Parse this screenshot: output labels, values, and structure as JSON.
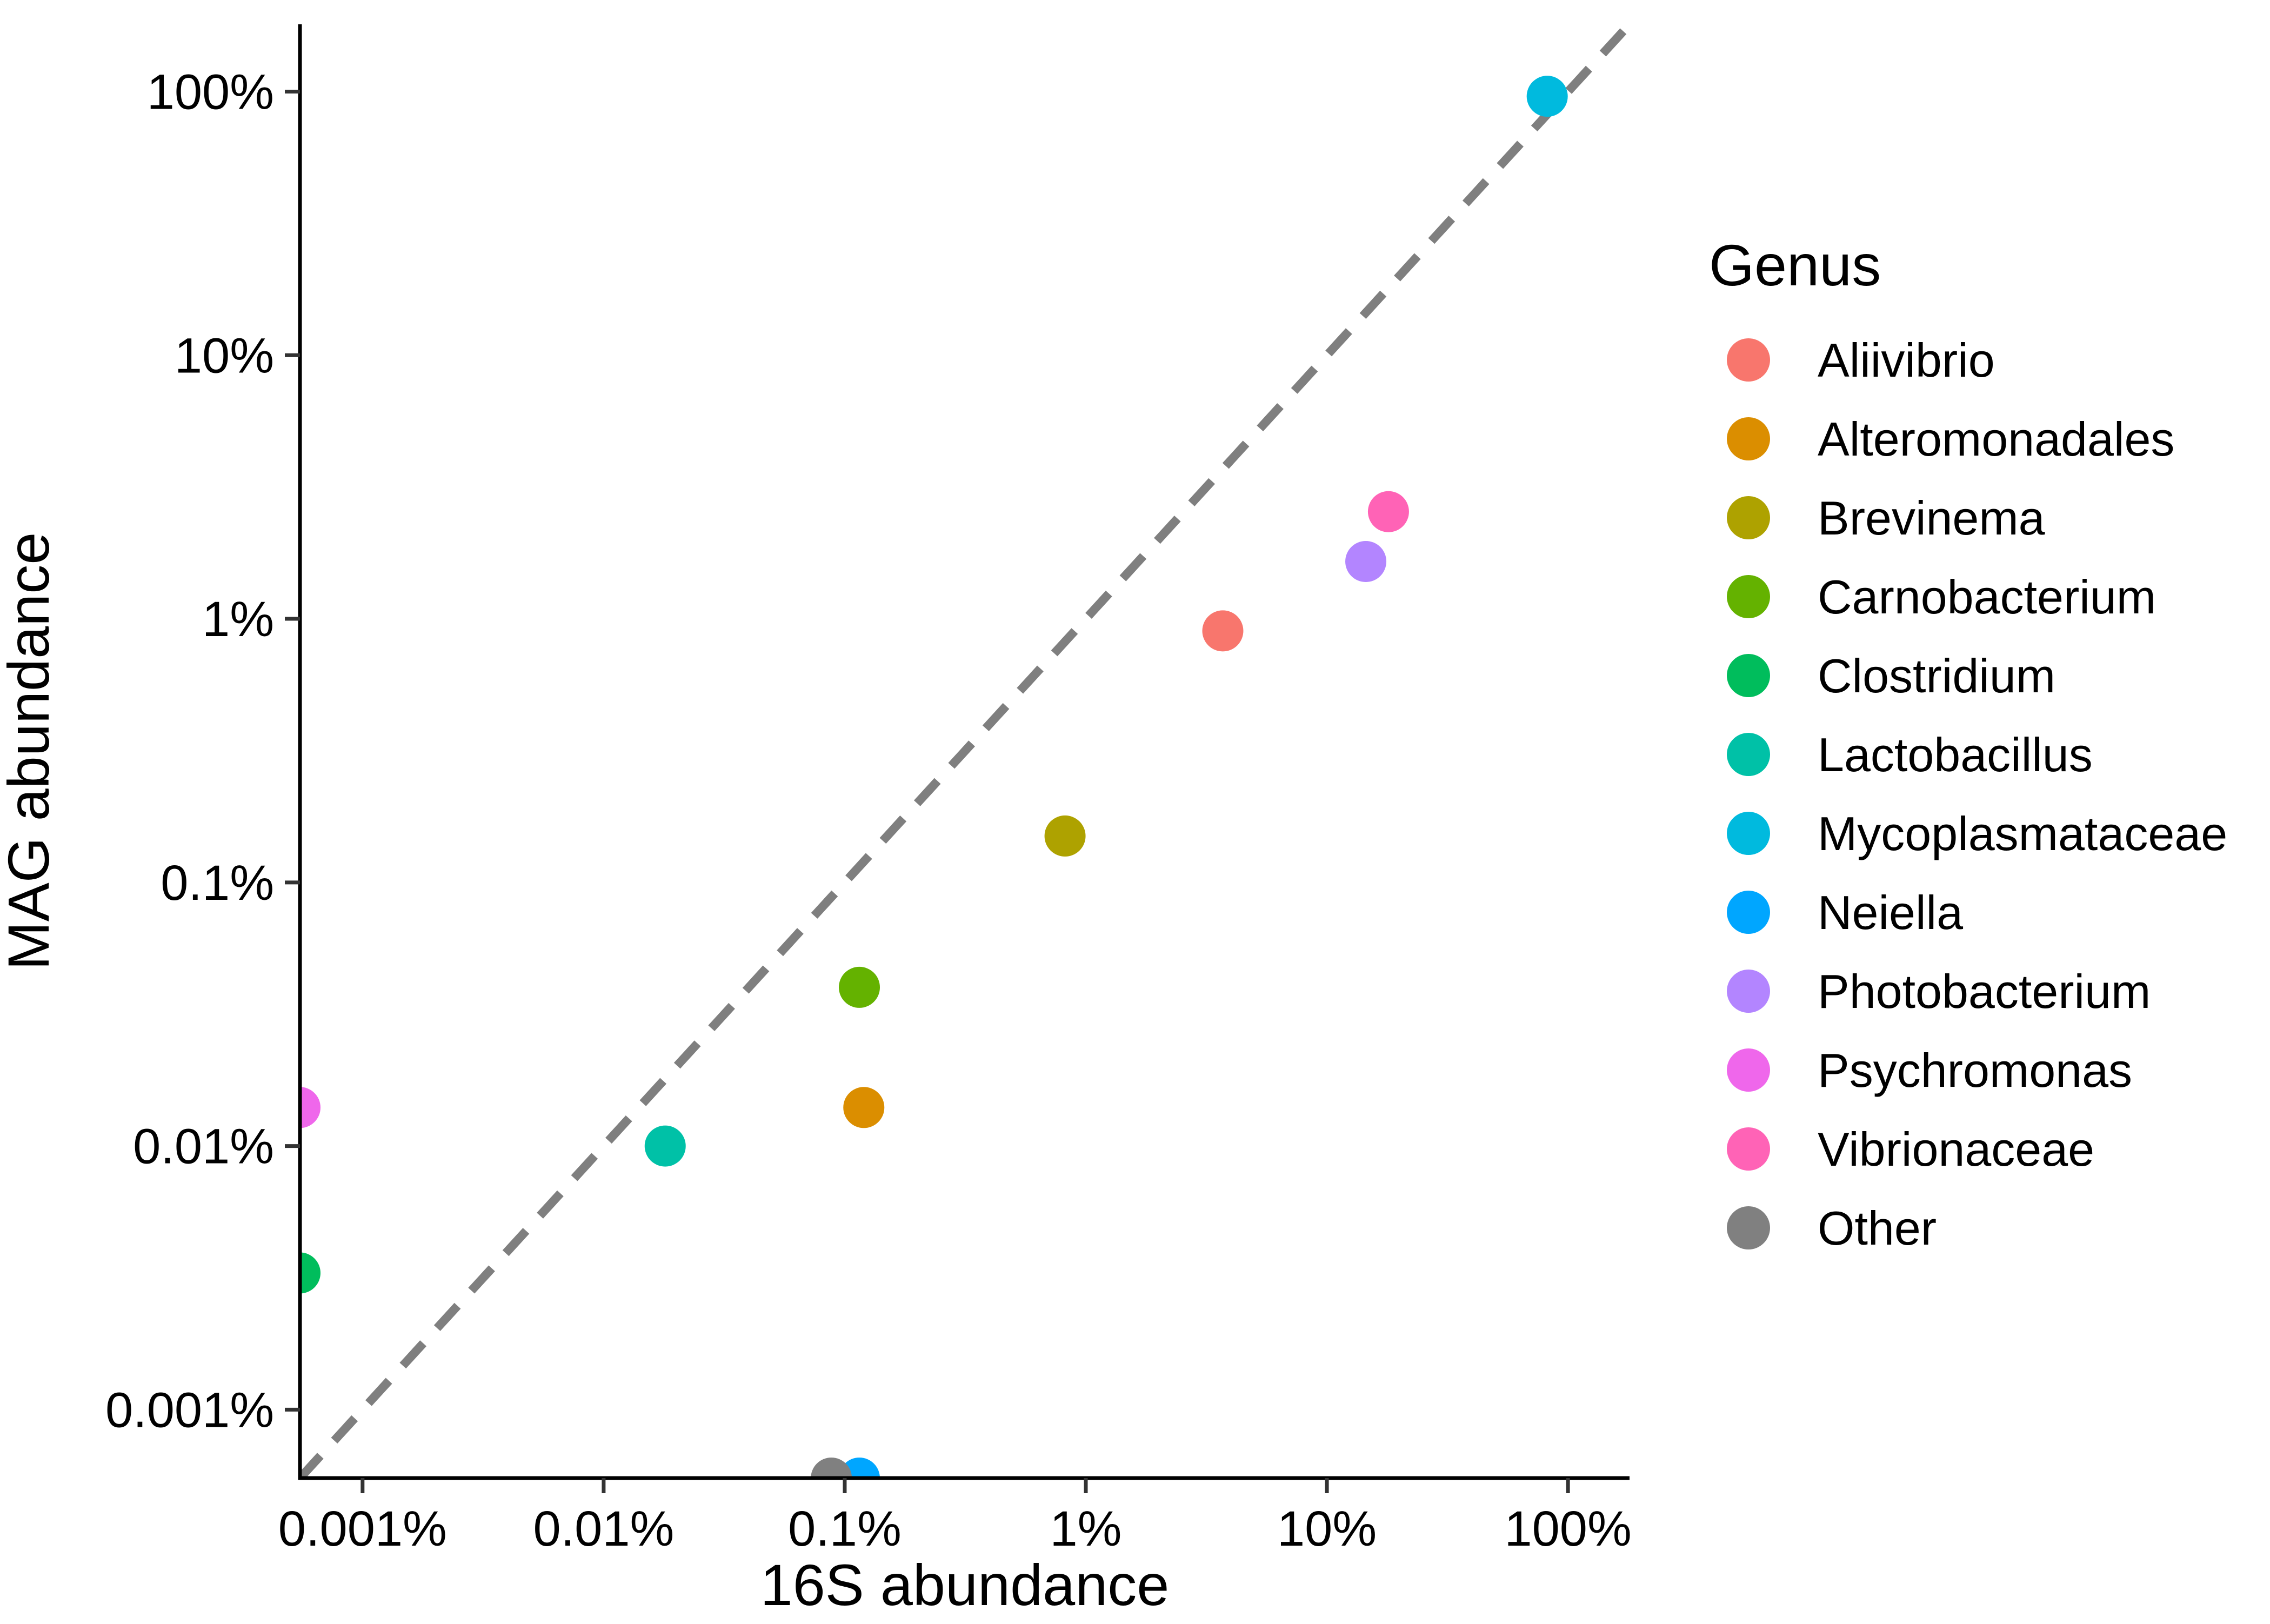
{
  "chart_data": {
    "type": "scatter",
    "xlabel": "16S abundance",
    "ylabel": "MAG abundance",
    "x_scale": "log10",
    "y_scale": "log10",
    "x_ticks": [
      {
        "value": 0.001,
        "label": "0.001%"
      },
      {
        "value": 0.01,
        "label": "0.01%"
      },
      {
        "value": 0.1,
        "label": "0.1%"
      },
      {
        "value": 1,
        "label": "1%"
      },
      {
        "value": 10,
        "label": "10%"
      },
      {
        "value": 100,
        "label": "100%"
      }
    ],
    "y_ticks": [
      {
        "value": 0.001,
        "label": "0.001%"
      },
      {
        "value": 0.01,
        "label": "0.01%"
      },
      {
        "value": 0.1,
        "label": "0.1%"
      },
      {
        "value": 1,
        "label": "1%"
      },
      {
        "value": 10,
        "label": "10%"
      },
      {
        "value": 100,
        "label": "100%"
      }
    ],
    "xlim": [
      0.00055,
      180
    ],
    "ylim": [
      0.00055,
      180
    ],
    "reference_line": "y = x",
    "grid": false,
    "legend": {
      "title": "Genus",
      "position": "right",
      "entries": [
        {
          "name": "Aliivibrio",
          "color": "#F8766D"
        },
        {
          "name": "Alteromonadales",
          "color": "#DB8E00"
        },
        {
          "name": "Brevinema",
          "color": "#AEA200"
        },
        {
          "name": "Carnobacterium",
          "color": "#64B200"
        },
        {
          "name": "Clostridium",
          "color": "#00BD5C"
        },
        {
          "name": "Lactobacillus",
          "color": "#00C1A7"
        },
        {
          "name": "Mycoplasmataceae",
          "color": "#00BADE"
        },
        {
          "name": "Neiella",
          "color": "#00A6FF"
        },
        {
          "name": "Photobacterium",
          "color": "#B385FF"
        },
        {
          "name": "Psychromonas",
          "color": "#EF67EB"
        },
        {
          "name": "Vibrionaceae",
          "color": "#FF63B6"
        },
        {
          "name": "Other",
          "color": "#808080"
        }
      ]
    },
    "points": [
      {
        "genus": "Aliivibrio",
        "x": 3.7,
        "y": 0.9
      },
      {
        "genus": "Alteromonadales",
        "x": 0.12,
        "y": 0.014
      },
      {
        "genus": "Brevinema",
        "x": 0.82,
        "y": 0.15
      },
      {
        "genus": "Carnobacterium",
        "x": 0.115,
        "y": 0.04
      },
      {
        "genus": "Clostridium",
        "x": 0.00055,
        "y": 0.0033
      },
      {
        "genus": "Lactobacillus",
        "x": 0.018,
        "y": 0.01
      },
      {
        "genus": "Mycoplasmataceae",
        "x": 82,
        "y": 96
      },
      {
        "genus": "Neiella",
        "x": 0.115,
        "y": 0.00055
      },
      {
        "genus": "Photobacterium",
        "x": 14.5,
        "y": 1.65
      },
      {
        "genus": "Psychromonas",
        "x": 0.00055,
        "y": 0.014
      },
      {
        "genus": "Vibrionaceae",
        "x": 18,
        "y": 2.55
      },
      {
        "genus": "Other",
        "x": 0.088,
        "y": 0.00055
      }
    ]
  }
}
